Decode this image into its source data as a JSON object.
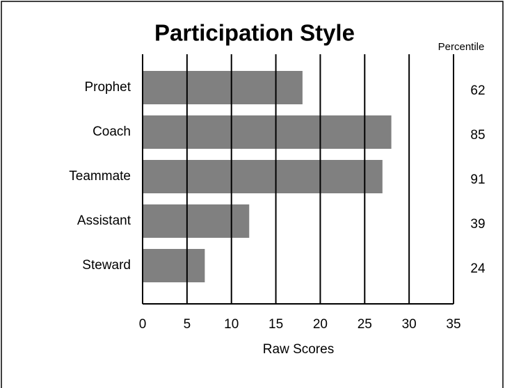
{
  "chart_data": {
    "type": "bar",
    "orientation": "horizontal",
    "title": "Participation Style",
    "categories": [
      "Prophet",
      "Coach",
      "Teammate",
      "Assistant",
      "Steward"
    ],
    "values": [
      18,
      28,
      27,
      12,
      7
    ],
    "color": "#808080",
    "xlabel": "Raw Scores",
    "xlim": [
      0,
      35
    ],
    "xticks": [
      0,
      5,
      10,
      15,
      20,
      25,
      30,
      35
    ],
    "grid": true,
    "percentile_header": "Percentile",
    "percentiles": [
      62,
      85,
      91,
      39,
      24
    ]
  }
}
